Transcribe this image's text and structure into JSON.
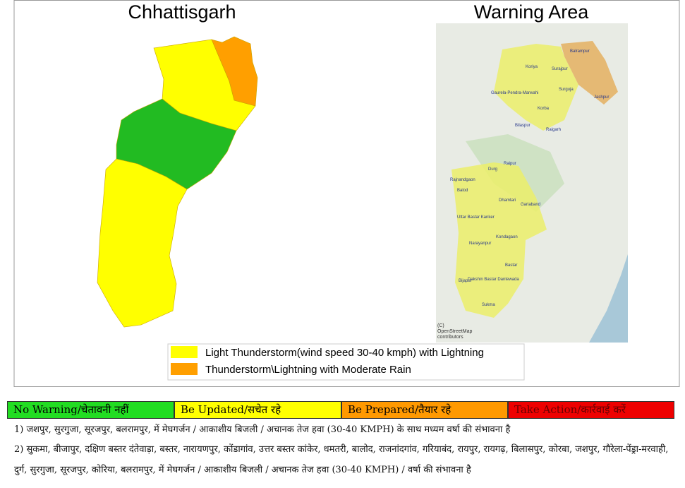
{
  "left_map": {
    "title": "Chhattisgarh"
  },
  "right_map": {
    "title": "Warning Area",
    "places": [
      "Koriya",
      "Surajpur",
      "Balrampur",
      "Surguja",
      "Jashpur",
      "Gaurela-Pendra-Marwahi",
      "Korba",
      "Bilaspur",
      "Raigarh",
      "Raipur",
      "Durg",
      "Rajnandgaon",
      "Balod",
      "Dhamtari",
      "Gariaband",
      "Uttar Bastar Kanker",
      "Kondagaon",
      "Narayanpur",
      "Bastar",
      "Bijapur",
      "Dakshin Bastar Dantewada",
      "Sukma"
    ],
    "attribution": [
      "(C)",
      "OpenStreetMap",
      "contributors"
    ]
  },
  "legend": [
    "Light Thunderstorm(wind speed 30-40 kmph) with Lightning",
    "Thunderstorm\\Lightning with Moderate Rain"
  ],
  "warning_levels": [
    "No Warning/चेतावनी नहीं",
    "Be Updated/सचेत रहे",
    "Be Prepared/तैयार रहे",
    "Take Action/कार्रवाई करें"
  ],
  "notes": [
    "1) जशपुर, सुरगुजा, सूरजपुर, बलरामपुर,  में मेघगर्जन / आकाशीय बिजली / अचानक तेज हवा (30-40 KMPH) के साथ मध्यम वर्षा की संभावना  है",
    "2) सुकमा, बीजापुर, दक्षिण बस्तर दंतेवाड़ा, बस्तर, नारायणपुर, कोंडागांव, उत्तर बस्तर कांकेर, धमतरी, बालोद, राजनांदगांव, गरियाबंद, रायपुर, रायगढ़, बिलासपुर, कोरबा, जशपुर, गौरेला-पेंड्रा-मरवाही,",
    "दुर्ग, सुरगुजा, सूरजपुर, कोरिया, बलरामपुर,  में मेघगर्जन / आकाशीय बिजली / अचानक तेज हवा (30-40 KMPH) / वर्षा की संभावना  है"
  ]
}
